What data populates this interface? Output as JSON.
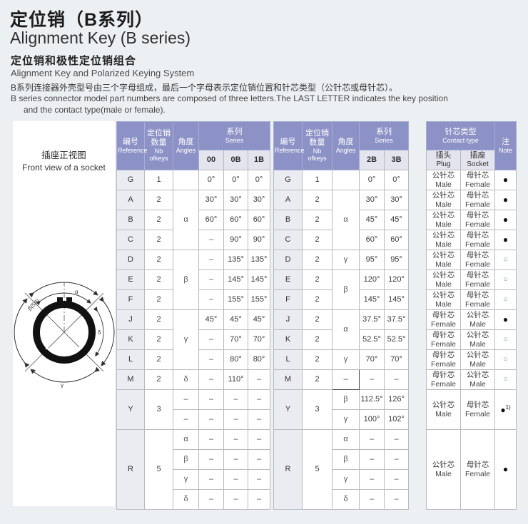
{
  "page": {
    "title_cn": "定位销（B系列）",
    "title_en": "Alignment Key (B series)",
    "subtitle_cn": "定位销和极性定位销组合",
    "subtitle_en": "Alignment Key and Polarized Keying System",
    "desc_cn": "B系列连接器外壳型号由三个字母组成，最后一个字母表示定位销位置和针芯类型（公针芯或母针芯）。",
    "desc_en_line1": "B series connector model part numbers are composed of three letters.The LAST LETTER indicates the key position",
    "desc_en_line2": "and the contact type(male or female)."
  },
  "colors": {
    "header_bg": "#8d92c6",
    "subheader_bg": "#e4e4ee",
    "ref_col_bg": "#ebebf2",
    "page_bg": "#edf0f3",
    "border": "#b9b9c1",
    "note_open": "#6f9799",
    "note_filled": "#111111"
  },
  "diagram": {
    "caption_cn": "插座正视图",
    "caption_en": "Front view of a socket",
    "labels": {
      "alpha": "α",
      "beta": "β(5B)",
      "gamma": "γ",
      "delta": "δ"
    }
  },
  "left_table": {
    "widths": [
      39,
      40,
      36,
      35,
      34,
      31
    ],
    "header_rows": [
      [
        {
          "cn": "编号",
          "en": "Reference",
          "rs": 2,
          "c": "hdr",
          "n": "reference-header"
        },
        {
          "cn": "定位销\n数量",
          "en": "Nb\nofkeys",
          "rs": 2,
          "c": "hdr",
          "n": "nb-of-keys-header"
        },
        {
          "cn": "角度",
          "en": "Angles",
          "rs": 2,
          "c": "hdr",
          "n": "angles-header"
        },
        {
          "cn": "系列",
          "en": "Series",
          "cs": 3,
          "c": "hdr",
          "n": "series-header"
        }
      ],
      [
        {
          "t": "00",
          "c": "sub b",
          "n": "series-00-header"
        },
        {
          "t": "0B",
          "c": "sub b",
          "n": "series-0b-header"
        },
        {
          "t": "1B",
          "c": "sub b",
          "n": "series-1b-header"
        }
      ]
    ],
    "rows": [
      [
        {
          "t": "G",
          "c": "ref",
          "n": "reference-cell"
        },
        {
          "t": "1"
        },
        {
          "t": ""
        },
        {
          "t": "0°"
        },
        {
          "t": "0°"
        },
        {
          "t": "0°"
        }
      ],
      [
        {
          "t": "A",
          "c": "ref",
          "n": "reference-cell"
        },
        {
          "t": "2"
        },
        {
          "t": "α",
          "rs": 3,
          "c": "ang"
        },
        {
          "t": "30°"
        },
        {
          "t": "30°"
        },
        {
          "t": "30°"
        }
      ],
      [
        {
          "t": "B",
          "c": "ref",
          "n": "reference-cell"
        },
        {
          "t": "2"
        },
        {
          "t": "60°"
        },
        {
          "t": "60°"
        },
        {
          "t": "60°"
        }
      ],
      [
        {
          "t": "C",
          "c": "ref",
          "n": "reference-cell"
        },
        {
          "t": "2"
        },
        {
          "t": "–",
          "c": "dash"
        },
        {
          "t": "90°"
        },
        {
          "t": "90°"
        }
      ],
      [
        {
          "t": "D",
          "c": "ref",
          "n": "reference-cell"
        },
        {
          "t": "2"
        },
        {
          "t": "β",
          "rs": 3,
          "c": "ang"
        },
        {
          "t": "–",
          "c": "dash"
        },
        {
          "t": "135°"
        },
        {
          "t": "135°"
        }
      ],
      [
        {
          "t": "E",
          "c": "ref",
          "n": "reference-cell"
        },
        {
          "t": "2"
        },
        {
          "t": "–",
          "c": "dash"
        },
        {
          "t": "145°"
        },
        {
          "t": "145°"
        }
      ],
      [
        {
          "t": "F",
          "c": "ref",
          "n": "reference-cell"
        },
        {
          "t": "2"
        },
        {
          "t": "–",
          "c": "dash"
        },
        {
          "t": "155°"
        },
        {
          "t": "155°"
        }
      ],
      [
        {
          "t": "J",
          "c": "ref",
          "n": "reference-cell"
        },
        {
          "t": "2"
        },
        {
          "t": "γ",
          "rs": 3,
          "c": "ang"
        },
        {
          "t": "45°"
        },
        {
          "t": "45°"
        },
        {
          "t": "45°"
        }
      ],
      [
        {
          "t": "K",
          "c": "ref",
          "n": "reference-cell"
        },
        {
          "t": "2"
        },
        {
          "t": "–",
          "c": "dash"
        },
        {
          "t": "70°"
        },
        {
          "t": "70°"
        }
      ],
      [
        {
          "t": "L",
          "c": "ref",
          "n": "reference-cell"
        },
        {
          "t": "2"
        },
        {
          "t": "–",
          "c": "dash"
        },
        {
          "t": "80°"
        },
        {
          "t": "80°"
        }
      ],
      [
        {
          "t": "M",
          "c": "ref",
          "n": "reference-cell"
        },
        {
          "t": "2"
        },
        {
          "t": "δ",
          "c": "ang"
        },
        {
          "t": "–",
          "c": "dash"
        },
        {
          "t": "110°"
        },
        {
          "t": "–",
          "c": "dash"
        }
      ],
      [
        {
          "t": "Y",
          "c": "ref",
          "rs": 2,
          "n": "reference-cell"
        },
        {
          "t": "3",
          "rs": 2
        },
        {
          "t": "–",
          "c": "dash"
        },
        {
          "t": "–",
          "c": "dash"
        },
        {
          "t": "–",
          "c": "dash"
        },
        {
          "t": "–",
          "c": "dash"
        }
      ],
      [
        {
          "t": "–",
          "c": "dash"
        },
        {
          "t": "–",
          "c": "dash"
        },
        {
          "t": "–",
          "c": "dash"
        },
        {
          "t": "–",
          "c": "dash"
        }
      ],
      [
        {
          "t": "R",
          "c": "ref",
          "rs": 4,
          "n": "reference-cell"
        },
        {
          "t": "5",
          "rs": 4
        },
        {
          "t": "α",
          "c": "ang"
        },
        {
          "t": "–",
          "c": "dash"
        },
        {
          "t": "–",
          "c": "dash"
        },
        {
          "t": "–",
          "c": "dash"
        }
      ],
      [
        {
          "t": "β",
          "c": "ang"
        },
        {
          "t": "–",
          "c": "dash"
        },
        {
          "t": "–",
          "c": "dash"
        },
        {
          "t": "–",
          "c": "dash"
        }
      ],
      [
        {
          "t": "γ",
          "c": "ang"
        },
        {
          "t": "–",
          "c": "dash"
        },
        {
          "t": "–",
          "c": "dash"
        },
        {
          "t": "–",
          "c": "dash"
        }
      ],
      [
        {
          "t": "δ",
          "c": "ang"
        },
        {
          "t": "–",
          "c": "dash"
        },
        {
          "t": "–",
          "c": "dash"
        },
        {
          "t": "–",
          "c": "dash"
        }
      ]
    ]
  },
  "right_table": {
    "widths": [
      40,
      42,
      38,
      35,
      34,
      25,
      48,
      48,
      30
    ],
    "header_rows": [
      [
        {
          "cn": "编号",
          "en": "Reference",
          "rs": 2,
          "c": "hdr",
          "n": "reference-header"
        },
        {
          "cn": "定位销\n数量",
          "en": "Nb\nofkeys",
          "rs": 2,
          "c": "hdr",
          "n": "nb-of-keys-header"
        },
        {
          "cn": "角度",
          "en": "Angles",
          "rs": 2,
          "c": "hdr",
          "n": "angles-header"
        },
        {
          "cn": "系列",
          "en": "Series",
          "cs": 2,
          "c": "hdr",
          "n": "series-header"
        },
        {
          "t": "",
          "rs": 2,
          "c": "sp",
          "n": "table-gap"
        },
        {
          "cn": "针芯类型",
          "en": "Contact type",
          "cs": 2,
          "c": "hdr",
          "n": "contact-type-header"
        },
        {
          "cn": "注",
          "en": "Note",
          "rs": 2,
          "c": "hdr",
          "n": "note-header"
        }
      ],
      [
        {
          "t": "2B",
          "c": "sub b",
          "n": "series-2b-header"
        },
        {
          "t": "3B",
          "c": "sub b",
          "n": "series-3b-header"
        },
        {
          "cn": "插头",
          "en": "Plug",
          "c": "sub",
          "n": "plug-header"
        },
        {
          "cn": "插座",
          "en": "Socket",
          "c": "sub",
          "n": "socket-header"
        }
      ]
    ],
    "rows": [
      [
        {
          "t": "G",
          "c": "ref",
          "n": "reference-cell"
        },
        {
          "t": "1"
        },
        {
          "t": ""
        },
        {
          "t": "0°"
        },
        {
          "t": "0°"
        },
        {
          "t": "",
          "c": "sp",
          "n": "table-gap"
        },
        {
          "cn": "公针芯",
          "en": "Male",
          "c": "ct"
        },
        {
          "cn": "母针芯",
          "en": "Female",
          "c": "ct"
        },
        {
          "t": "●",
          "c": "nf",
          "n": "note-filled-dot"
        }
      ],
      [
        {
          "t": "A",
          "c": "ref",
          "n": "reference-cell"
        },
        {
          "t": "2"
        },
        {
          "t": "α",
          "rs": 3,
          "c": "ang"
        },
        {
          "t": "30°"
        },
        {
          "t": "30°"
        },
        {
          "t": "",
          "c": "sp",
          "n": "table-gap"
        },
        {
          "cn": "公针芯",
          "en": "Male",
          "c": "ct"
        },
        {
          "cn": "母针芯",
          "en": "Female",
          "c": "ct"
        },
        {
          "t": "●",
          "c": "nf",
          "n": "note-filled-dot"
        }
      ],
      [
        {
          "t": "B",
          "c": "ref",
          "n": "reference-cell"
        },
        {
          "t": "2"
        },
        {
          "t": "45°"
        },
        {
          "t": "45°"
        },
        {
          "t": "",
          "c": "sp",
          "n": "table-gap"
        },
        {
          "cn": "公针芯",
          "en": "Male",
          "c": "ct"
        },
        {
          "cn": "母针芯",
          "en": "Female",
          "c": "ct"
        },
        {
          "t": "●",
          "c": "nf",
          "n": "note-filled-dot"
        }
      ],
      [
        {
          "t": "C",
          "c": "ref",
          "n": "reference-cell"
        },
        {
          "t": "2"
        },
        {
          "t": "60°"
        },
        {
          "t": "60°"
        },
        {
          "t": "",
          "c": "sp",
          "n": "table-gap"
        },
        {
          "cn": "公针芯",
          "en": "Male",
          "c": "ct"
        },
        {
          "cn": "母针芯",
          "en": "Female",
          "c": "ct"
        },
        {
          "t": "●",
          "c": "nf",
          "n": "note-filled-dot"
        }
      ],
      [
        {
          "t": "D",
          "c": "ref",
          "n": "reference-cell"
        },
        {
          "t": "2"
        },
        {
          "t": "γ",
          "c": "ang"
        },
        {
          "t": "95°"
        },
        {
          "t": "95°"
        },
        {
          "t": "",
          "c": "sp",
          "n": "table-gap"
        },
        {
          "cn": "公针芯",
          "en": "Male",
          "c": "ct"
        },
        {
          "cn": "母针芯",
          "en": "Female",
          "c": "ct"
        },
        {
          "t": "○",
          "c": "no",
          "n": "note-open-dot"
        }
      ],
      [
        {
          "t": "E",
          "c": "ref",
          "n": "reference-cell"
        },
        {
          "t": "2"
        },
        {
          "t": "β",
          "rs": 2,
          "c": "ang"
        },
        {
          "t": "120°"
        },
        {
          "t": "120°"
        },
        {
          "t": "",
          "c": "sp",
          "n": "table-gap"
        },
        {
          "cn": "公针芯",
          "en": "Male",
          "c": "ct"
        },
        {
          "cn": "母针芯",
          "en": "Female",
          "c": "ct"
        },
        {
          "t": "○",
          "c": "no",
          "n": "note-open-dot"
        }
      ],
      [
        {
          "t": "F",
          "c": "ref",
          "n": "reference-cell"
        },
        {
          "t": "2"
        },
        {
          "t": "145°"
        },
        {
          "t": "145°"
        },
        {
          "t": "",
          "c": "sp",
          "n": "table-gap"
        },
        {
          "cn": "公针芯",
          "en": "Male",
          "c": "ct"
        },
        {
          "cn": "母针芯",
          "en": "Female",
          "c": "ct"
        },
        {
          "t": "○",
          "c": "no",
          "n": "note-open-dot"
        }
      ],
      [
        {
          "t": "J",
          "c": "ref",
          "n": "reference-cell"
        },
        {
          "t": "2"
        },
        {
          "t": "α",
          "rs": 2,
          "c": "ang"
        },
        {
          "t": "37.5°"
        },
        {
          "t": "37.5°"
        },
        {
          "t": "",
          "c": "sp",
          "n": "table-gap"
        },
        {
          "cn": "母针芯",
          "en": "Female",
          "c": "ct"
        },
        {
          "cn": "公针芯",
          "en": "Male",
          "c": "ct"
        },
        {
          "t": "●",
          "c": "nf",
          "n": "note-filled-dot"
        }
      ],
      [
        {
          "t": "K",
          "c": "ref",
          "n": "reference-cell"
        },
        {
          "t": "2"
        },
        {
          "t": "52.5°"
        },
        {
          "t": "52.5°"
        },
        {
          "t": "",
          "c": "sp",
          "n": "table-gap"
        },
        {
          "cn": "母针芯",
          "en": "Female",
          "c": "ct"
        },
        {
          "cn": "公针芯",
          "en": "Male",
          "c": "ct"
        },
        {
          "t": "○",
          "c": "no",
          "n": "note-open-dot"
        }
      ],
      [
        {
          "t": "L",
          "c": "ref",
          "n": "reference-cell"
        },
        {
          "t": "2"
        },
        {
          "t": "γ",
          "c": "ang"
        },
        {
          "t": "70°"
        },
        {
          "t": "70°"
        },
        {
          "t": "",
          "c": "sp",
          "n": "table-gap"
        },
        {
          "cn": "母针芯",
          "en": "Female",
          "c": "ct"
        },
        {
          "cn": "公针芯",
          "en": "Male",
          "c": "ct"
        },
        {
          "t": "○",
          "c": "no",
          "n": "note-open-dot"
        }
      ],
      [
        {
          "t": "M",
          "c": "ref",
          "n": "reference-cell"
        },
        {
          "t": "2"
        },
        {
          "t": "–",
          "c": "boxed"
        },
        {
          "t": "–",
          "c": "dash"
        },
        {
          "t": "–",
          "c": "dash"
        },
        {
          "t": "",
          "c": "sp",
          "n": "table-gap"
        },
        {
          "cn": "母针芯",
          "en": "Female",
          "c": "ct"
        },
        {
          "cn": "公针芯",
          "en": "Male",
          "c": "ct"
        },
        {
          "t": "○",
          "c": "no",
          "n": "note-open-dot"
        }
      ],
      [
        {
          "t": "Y",
          "c": "ref",
          "rs": 2,
          "n": "reference-cell"
        },
        {
          "t": "3",
          "rs": 2
        },
        {
          "t": "β",
          "c": "ang"
        },
        {
          "t": "112.5°"
        },
        {
          "t": "126°"
        },
        {
          "t": "",
          "c": "sp",
          "n": "table-gap"
        },
        {
          "cn": "公针芯",
          "en": "Male",
          "c": "ct",
          "rs": 2
        },
        {
          "cn": "母针芯",
          "en": "Female",
          "c": "ct",
          "rs": 2
        },
        {
          "t": "●",
          "sup": "1)",
          "c": "nf",
          "rs": 2,
          "n": "note-filled-dot"
        }
      ],
      [
        {
          "t": "γ",
          "c": "ang"
        },
        {
          "t": "100°"
        },
        {
          "t": "102°"
        },
        {
          "t": "",
          "c": "sp",
          "n": "table-gap"
        }
      ],
      [
        {
          "t": "R",
          "c": "ref",
          "rs": 4,
          "n": "reference-cell"
        },
        {
          "t": "5",
          "rs": 4
        },
        {
          "t": "α",
          "c": "ang"
        },
        {
          "t": "–",
          "c": "dash"
        },
        {
          "t": "–",
          "c": "dash"
        },
        {
          "t": "",
          "c": "sp",
          "n": "table-gap"
        },
        {
          "cn": "公针芯",
          "en": "Male",
          "c": "ct",
          "rs": 4
        },
        {
          "cn": "母针芯",
          "en": "Female",
          "c": "ct",
          "rs": 4
        },
        {
          "t": "●",
          "c": "nf",
          "rs": 4,
          "n": "note-filled-dot"
        }
      ],
      [
        {
          "t": "β",
          "c": "ang"
        },
        {
          "t": "–",
          "c": "dash"
        },
        {
          "t": "–",
          "c": "dash"
        },
        {
          "t": "",
          "c": "sp",
          "n": "table-gap"
        }
      ],
      [
        {
          "t": "γ",
          "c": "ang"
        },
        {
          "t": "–",
          "c": "dash"
        },
        {
          "t": "–",
          "c": "dash"
        },
        {
          "t": "",
          "c": "sp",
          "n": "table-gap"
        }
      ],
      [
        {
          "t": "δ",
          "c": "ang"
        },
        {
          "t": "–",
          "c": "dash"
        },
        {
          "t": "–",
          "c": "dash"
        },
        {
          "t": "",
          "c": "sp",
          "n": "table-gap"
        }
      ]
    ]
  }
}
